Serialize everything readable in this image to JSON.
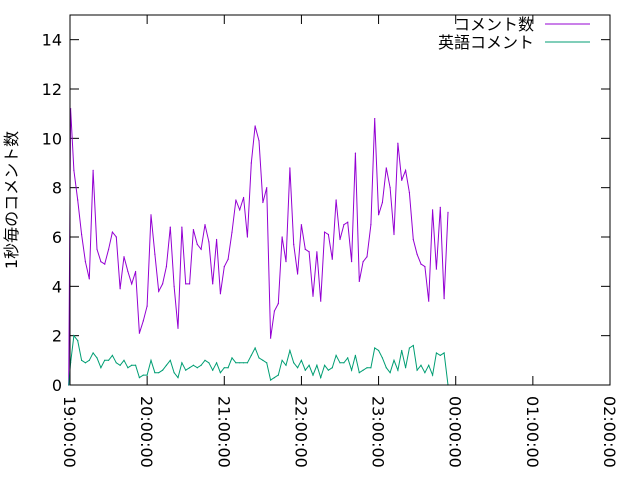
{
  "chart_data": {
    "type": "line",
    "title": "",
    "xlabel": "",
    "ylabel": "1秒毎のコメント数",
    "ylim": [
      0,
      15
    ],
    "xlim": [
      "19:00:00",
      "02:00:00"
    ],
    "grid": false,
    "legend_position": "top-right",
    "y_ticks": [
      0,
      2,
      4,
      6,
      8,
      10,
      12,
      14
    ],
    "x_ticks": [
      "19:00:00",
      "20:00:00",
      "21:00:00",
      "22:00:00",
      "23:00:00",
      "00:00:00",
      "01:00:00",
      "02:00:00"
    ],
    "series": [
      {
        "name": "コメント数",
        "color": "#9400d3",
        "points": [
          [
            "18:59:00",
            0
          ],
          [
            "19:00:30",
            11.2
          ],
          [
            "19:03",
            8.7
          ],
          [
            "19:06",
            7.5
          ],
          [
            "19:09",
            6.1
          ],
          [
            "19:12",
            5.0
          ],
          [
            "19:15",
            4.3
          ],
          [
            "19:18",
            8.7
          ],
          [
            "19:21",
            5.5
          ],
          [
            "19:24",
            5.0
          ],
          [
            "19:27",
            4.9
          ],
          [
            "19:30",
            5.5
          ],
          [
            "19:33",
            6.2
          ],
          [
            "19:36",
            6.0
          ],
          [
            "19:39",
            3.9
          ],
          [
            "19:42",
            5.2
          ],
          [
            "19:45",
            4.6
          ],
          [
            "19:48",
            4.1
          ],
          [
            "19:51",
            4.6
          ],
          [
            "19:54",
            2.1
          ],
          [
            "19:57",
            2.6
          ],
          [
            "20:00",
            3.2
          ],
          [
            "20:03",
            6.9
          ],
          [
            "20:06",
            5.3
          ],
          [
            "20:09",
            3.8
          ],
          [
            "20:12",
            4.1
          ],
          [
            "20:15",
            4.8
          ],
          [
            "20:18",
            6.4
          ],
          [
            "20:21",
            4.0
          ],
          [
            "20:24",
            2.3
          ],
          [
            "20:27",
            6.4
          ],
          [
            "20:30",
            4.1
          ],
          [
            "20:33",
            4.1
          ],
          [
            "20:36",
            6.3
          ],
          [
            "20:39",
            5.7
          ],
          [
            "20:42",
            5.5
          ],
          [
            "20:45",
            6.5
          ],
          [
            "20:48",
            5.8
          ],
          [
            "20:51",
            4.1
          ],
          [
            "20:54",
            5.9
          ],
          [
            "20:57",
            3.7
          ],
          [
            "21:00",
            4.8
          ],
          [
            "21:03",
            5.1
          ],
          [
            "21:06",
            6.2
          ],
          [
            "21:09",
            7.5
          ],
          [
            "21:12",
            7.1
          ],
          [
            "21:15",
            7.6
          ],
          [
            "21:18",
            6.0
          ],
          [
            "21:21",
            9.0
          ],
          [
            "21:24",
            10.5
          ],
          [
            "21:27",
            9.9
          ],
          [
            "21:30",
            7.4
          ],
          [
            "21:33",
            8.0
          ],
          [
            "21:36",
            1.9
          ],
          [
            "21:39",
            3.0
          ],
          [
            "21:42",
            3.3
          ],
          [
            "21:45",
            6.0
          ],
          [
            "21:48",
            5.0
          ],
          [
            "21:51",
            8.8
          ],
          [
            "21:54",
            5.7
          ],
          [
            "21:57",
            4.5
          ],
          [
            "22:00",
            6.5
          ],
          [
            "22:03",
            5.5
          ],
          [
            "22:06",
            5.4
          ],
          [
            "22:09",
            3.6
          ],
          [
            "22:12",
            5.4
          ],
          [
            "22:15",
            3.4
          ],
          [
            "22:18",
            6.2
          ],
          [
            "22:21",
            6.1
          ],
          [
            "22:24",
            5.1
          ],
          [
            "22:27",
            7.5
          ],
          [
            "22:30",
            5.9
          ],
          [
            "22:33",
            6.5
          ],
          [
            "22:36",
            6.6
          ],
          [
            "22:39",
            5.0
          ],
          [
            "22:42",
            9.4
          ],
          [
            "22:45",
            4.2
          ],
          [
            "22:48",
            5.0
          ],
          [
            "22:51",
            5.2
          ],
          [
            "22:54",
            6.5
          ],
          [
            "22:57",
            10.8
          ],
          [
            "23:00",
            6.9
          ],
          [
            "23:03",
            7.4
          ],
          [
            "23:06",
            8.8
          ],
          [
            "23:09",
            8.0
          ],
          [
            "23:12",
            6.1
          ],
          [
            "23:15",
            9.8
          ],
          [
            "23:18",
            8.3
          ],
          [
            "23:21",
            8.7
          ],
          [
            "23:24",
            7.8
          ],
          [
            "23:27",
            5.9
          ],
          [
            "23:30",
            5.3
          ],
          [
            "23:33",
            4.9
          ],
          [
            "23:36",
            4.8
          ],
          [
            "23:39",
            3.4
          ],
          [
            "23:42",
            7.1
          ],
          [
            "23:45",
            4.7
          ],
          [
            "23:48",
            7.2
          ],
          [
            "23:51",
            3.5
          ],
          [
            "23:54",
            7.0
          ]
        ]
      },
      {
        "name": "英語コメント",
        "color": "#009e73",
        "points": [
          [
            "18:59:00",
            0
          ],
          [
            "19:00:30",
            0.9
          ],
          [
            "19:03",
            2.0
          ],
          [
            "19:06",
            1.8
          ],
          [
            "19:09",
            1.0
          ],
          [
            "19:12",
            0.9
          ],
          [
            "19:15",
            1.0
          ],
          [
            "19:18",
            1.3
          ],
          [
            "19:21",
            1.1
          ],
          [
            "19:24",
            0.7
          ],
          [
            "19:27",
            1.0
          ],
          [
            "19:30",
            1.0
          ],
          [
            "19:33",
            1.2
          ],
          [
            "19:36",
            0.9
          ],
          [
            "19:39",
            0.8
          ],
          [
            "19:42",
            1.0
          ],
          [
            "19:45",
            0.7
          ],
          [
            "19:48",
            0.8
          ],
          [
            "19:51",
            0.8
          ],
          [
            "19:54",
            0.3
          ],
          [
            "19:57",
            0.4
          ],
          [
            "20:00",
            0.4
          ],
          [
            "20:03",
            1.0
          ],
          [
            "20:06",
            0.5
          ],
          [
            "20:09",
            0.5
          ],
          [
            "20:12",
            0.6
          ],
          [
            "20:15",
            0.8
          ],
          [
            "20:18",
            1.0
          ],
          [
            "20:21",
            0.5
          ],
          [
            "20:24",
            0.3
          ],
          [
            "20:27",
            0.9
          ],
          [
            "20:30",
            0.6
          ],
          [
            "20:33",
            0.7
          ],
          [
            "20:36",
            0.8
          ],
          [
            "20:39",
            0.7
          ],
          [
            "20:42",
            0.8
          ],
          [
            "20:45",
            1.0
          ],
          [
            "20:48",
            0.9
          ],
          [
            "20:51",
            0.6
          ],
          [
            "20:54",
            0.9
          ],
          [
            "20:57",
            0.5
          ],
          [
            "21:00",
            0.7
          ],
          [
            "21:03",
            0.7
          ],
          [
            "21:06",
            1.1
          ],
          [
            "21:09",
            0.9
          ],
          [
            "21:12",
            0.9
          ],
          [
            "21:15",
            0.9
          ],
          [
            "21:18",
            0.9
          ],
          [
            "21:21",
            1.2
          ],
          [
            "21:24",
            1.5
          ],
          [
            "21:27",
            1.1
          ],
          [
            "21:30",
            1.0
          ],
          [
            "21:33",
            0.9
          ],
          [
            "21:36",
            0.2
          ],
          [
            "21:39",
            0.3
          ],
          [
            "21:42",
            0.4
          ],
          [
            "21:45",
            1.0
          ],
          [
            "21:48",
            0.8
          ],
          [
            "21:51",
            1.4
          ],
          [
            "21:54",
            0.9
          ],
          [
            "21:57",
            0.7
          ],
          [
            "22:00",
            1.0
          ],
          [
            "22:03",
            0.6
          ],
          [
            "22:06",
            0.8
          ],
          [
            "22:09",
            0.4
          ],
          [
            "22:12",
            0.8
          ],
          [
            "22:15",
            0.3
          ],
          [
            "22:18",
            0.8
          ],
          [
            "22:21",
            0.6
          ],
          [
            "22:24",
            0.7
          ],
          [
            "22:27",
            1.2
          ],
          [
            "22:30",
            0.9
          ],
          [
            "22:33",
            0.9
          ],
          [
            "22:36",
            1.1
          ],
          [
            "22:39",
            0.6
          ],
          [
            "22:42",
            1.2
          ],
          [
            "22:45",
            0.5
          ],
          [
            "22:48",
            0.6
          ],
          [
            "22:51",
            0.7
          ],
          [
            "22:54",
            0.7
          ],
          [
            "22:57",
            1.5
          ],
          [
            "23:00",
            1.4
          ],
          [
            "23:03",
            1.1
          ],
          [
            "23:06",
            0.7
          ],
          [
            "23:09",
            0.5
          ],
          [
            "23:12",
            1.0
          ],
          [
            "23:15",
            0.6
          ],
          [
            "23:18",
            1.4
          ],
          [
            "23:21",
            0.7
          ],
          [
            "23:24",
            1.5
          ],
          [
            "23:27",
            1.6
          ],
          [
            "23:30",
            0.6
          ],
          [
            "23:33",
            0.8
          ],
          [
            "23:36",
            0.5
          ],
          [
            "23:39",
            0.8
          ],
          [
            "23:42",
            0.4
          ],
          [
            "23:45",
            1.3
          ],
          [
            "23:48",
            1.2
          ],
          [
            "23:51",
            1.3
          ],
          [
            "23:54",
            0.0
          ]
        ]
      }
    ]
  }
}
